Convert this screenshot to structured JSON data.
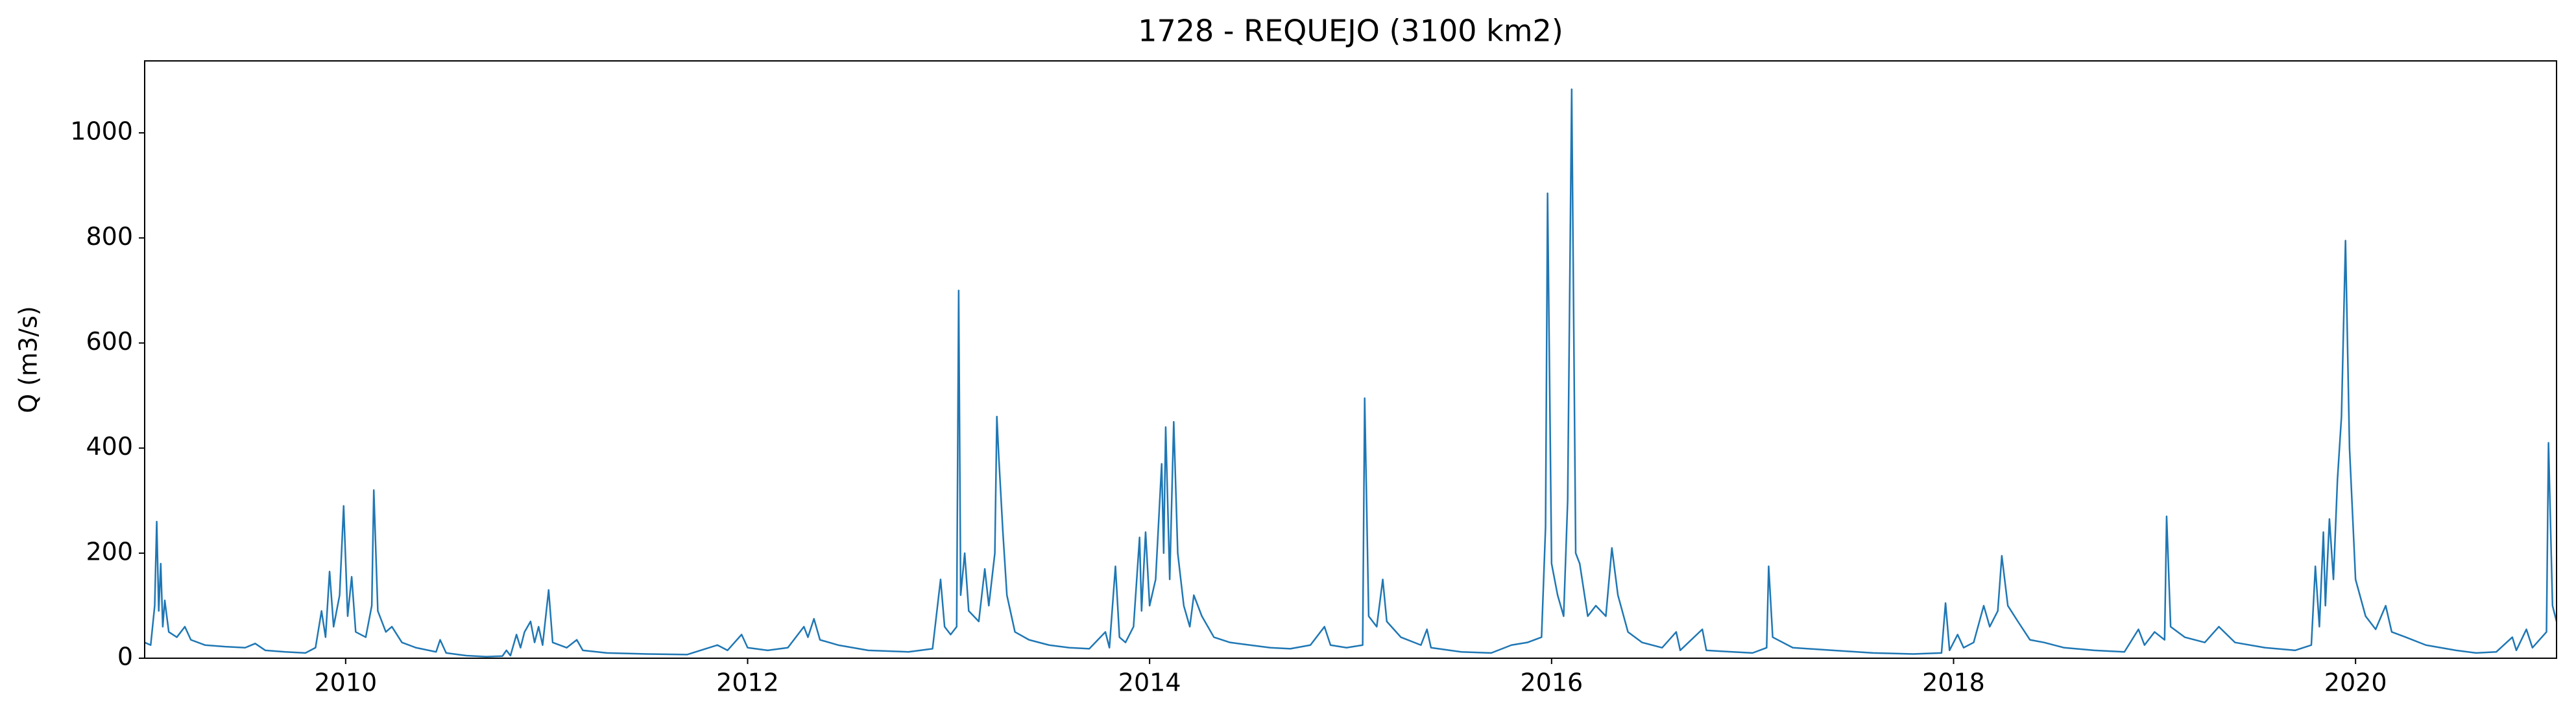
{
  "chart_data": {
    "type": "line",
    "title": "1728 - REQUEJO (3100 km2)",
    "ylabel": "Q (m3/s)",
    "color": "#1f77b4",
    "xlim": [
      2009,
      2021
    ],
    "xticks": [
      2010,
      2012,
      2014,
      2016,
      2018,
      2020
    ],
    "ylim": [
      0,
      1137
    ],
    "yticks": [
      0,
      200,
      400,
      600,
      800,
      1000
    ],
    "x": [
      2009.0,
      2009.03,
      2009.05,
      2009.06,
      2009.07,
      2009.08,
      2009.09,
      2009.1,
      2009.12,
      2009.16,
      2009.2,
      2009.23,
      2009.3,
      2009.4,
      2009.5,
      2009.55,
      2009.6,
      2009.7,
      2009.8,
      2009.85,
      2009.88,
      2009.9,
      2009.92,
      2009.94,
      2009.97,
      2009.99,
      2010.01,
      2010.03,
      2010.05,
      2010.1,
      2010.13,
      2010.14,
      2010.16,
      2010.2,
      2010.23,
      2010.28,
      2010.35,
      2010.45,
      2010.47,
      2010.5,
      2010.6,
      2010.7,
      2010.78,
      2010.8,
      2010.82,
      2010.85,
      2010.87,
      2010.89,
      2010.92,
      2010.94,
      2010.96,
      2010.98,
      2011.01,
      2011.03,
      2011.1,
      2011.15,
      2011.18,
      2011.3,
      2011.5,
      2011.7,
      2011.85,
      2011.9,
      2011.97,
      2012.0,
      2012.1,
      2012.2,
      2012.28,
      2012.3,
      2012.33,
      2012.36,
      2012.45,
      2012.6,
      2012.8,
      2012.92,
      2012.96,
      2012.98,
      2013.01,
      2013.04,
      2013.05,
      2013.06,
      2013.08,
      2013.1,
      2013.15,
      2013.18,
      2013.2,
      2013.23,
      2013.24,
      2013.25,
      2013.27,
      2013.29,
      2013.33,
      2013.4,
      2013.5,
      2013.6,
      2013.7,
      2013.78,
      2013.8,
      2013.83,
      2013.85,
      2013.88,
      2013.92,
      2013.95,
      2013.96,
      2013.98,
      2014.0,
      2014.03,
      2014.06,
      2014.07,
      2014.08,
      2014.1,
      2014.12,
      2014.14,
      2014.17,
      2014.2,
      2014.22,
      2014.26,
      2014.32,
      2014.4,
      2014.5,
      2014.6,
      2014.7,
      2014.8,
      2014.87,
      2014.9,
      2014.98,
      2015.06,
      2015.07,
      2015.09,
      2015.13,
      2015.16,
      2015.18,
      2015.25,
      2015.35,
      2015.38,
      2015.4,
      2015.55,
      2015.7,
      2015.8,
      2015.88,
      2015.95,
      2015.97,
      2015.98,
      2016.0,
      2016.03,
      2016.06,
      2016.08,
      2016.1,
      2016.12,
      2016.14,
      2016.18,
      2016.22,
      2016.27,
      2016.3,
      2016.33,
      2016.38,
      2016.45,
      2016.55,
      2016.62,
      2016.64,
      2016.75,
      2016.77,
      2016.9,
      2017.0,
      2017.07,
      2017.08,
      2017.1,
      2017.2,
      2017.4,
      2017.6,
      2017.8,
      2017.94,
      2017.96,
      2017.98,
      2018.02,
      2018.05,
      2018.1,
      2018.15,
      2018.18,
      2018.22,
      2018.24,
      2018.27,
      2018.32,
      2018.38,
      2018.45,
      2018.55,
      2018.7,
      2018.85,
      2018.92,
      2018.95,
      2019.0,
      2019.05,
      2019.06,
      2019.08,
      2019.15,
      2019.25,
      2019.32,
      2019.4,
      2019.55,
      2019.7,
      2019.78,
      2019.8,
      2019.82,
      2019.84,
      2019.85,
      2019.87,
      2019.89,
      2019.91,
      2019.93,
      2019.95,
      2019.97,
      2020.0,
      2020.05,
      2020.1,
      2020.15,
      2020.18,
      2020.25,
      2020.35,
      2020.5,
      2020.6,
      2020.7,
      2020.78,
      2020.8,
      2020.85,
      2020.88,
      2020.95,
      2020.96,
      2020.98,
      2021.0
    ],
    "values": [
      30,
      25,
      100,
      260,
      90,
      180,
      60,
      110,
      50,
      40,
      60,
      35,
      25,
      22,
      20,
      28,
      15,
      12,
      10,
      20,
      90,
      40,
      165,
      60,
      120,
      290,
      80,
      155,
      50,
      40,
      100,
      320,
      90,
      50,
      60,
      30,
      20,
      12,
      35,
      10,
      5,
      3,
      4,
      15,
      5,
      45,
      20,
      50,
      70,
      30,
      60,
      25,
      130,
      30,
      20,
      35,
      15,
      10,
      8,
      7,
      25,
      15,
      45,
      20,
      15,
      20,
      60,
      40,
      75,
      35,
      25,
      15,
      12,
      18,
      150,
      60,
      45,
      60,
      700,
      120,
      200,
      90,
      70,
      170,
      100,
      200,
      460,
      380,
      240,
      120,
      50,
      35,
      25,
      20,
      18,
      50,
      20,
      175,
      40,
      30,
      60,
      230,
      90,
      240,
      100,
      150,
      370,
      200,
      440,
      150,
      450,
      200,
      100,
      60,
      120,
      80,
      40,
      30,
      25,
      20,
      18,
      25,
      60,
      25,
      20,
      25,
      495,
      80,
      60,
      150,
      70,
      40,
      25,
      55,
      20,
      12,
      10,
      25,
      30,
      40,
      250,
      885,
      180,
      120,
      80,
      300,
      1083,
      200,
      180,
      80,
      100,
      80,
      210,
      120,
      50,
      30,
      20,
      50,
      15,
      55,
      15,
      12,
      10,
      20,
      175,
      40,
      20,
      15,
      10,
      8,
      10,
      105,
      15,
      45,
      20,
      30,
      100,
      60,
      90,
      195,
      100,
      70,
      35,
      30,
      20,
      15,
      12,
      55,
      25,
      50,
      35,
      270,
      60,
      40,
      30,
      60,
      30,
      20,
      15,
      25,
      175,
      60,
      240,
      100,
      265,
      150,
      340,
      460,
      795,
      400,
      150,
      80,
      55,
      100,
      50,
      40,
      25,
      15,
      10,
      12,
      40,
      15,
      55,
      20,
      50,
      410,
      100,
      70
    ]
  }
}
